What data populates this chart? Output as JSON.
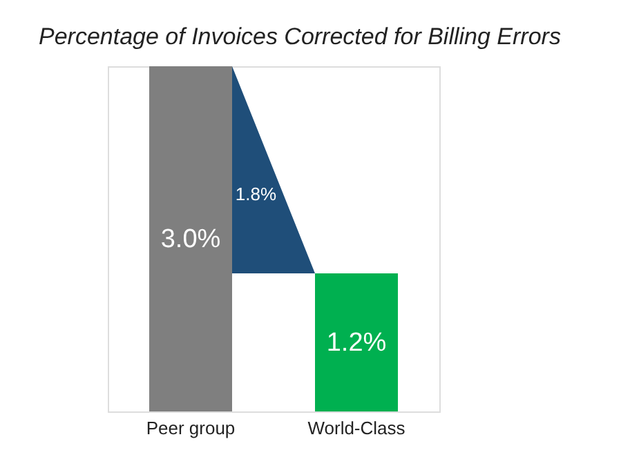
{
  "chart_data": {
    "type": "bar",
    "title": "Percentage of Invoices Corrected for Billing Errors",
    "categories": [
      "Peer group",
      "World-Class"
    ],
    "values": [
      3.0,
      1.2
    ],
    "colors": [
      "#7f7f7f",
      "#00b050"
    ],
    "value_labels": [
      "3.0%",
      "1.2%"
    ],
    "annotations": [
      "1.8%"
    ]
  }
}
